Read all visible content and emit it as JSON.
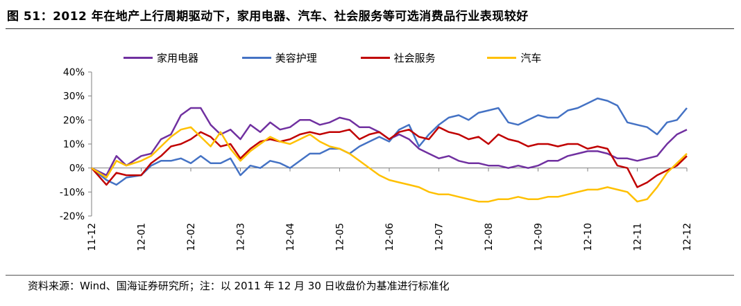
{
  "header": {
    "title": "图 51：2012 年在地产上行周期驱动下，家用电器、汽车、社会服务等可选消费品行业表现较好"
  },
  "footer": {
    "source": "资料来源：Wind、国海证券研究所；注：以 2011 年 12 月 30 日收盘价为基准进行标准化"
  },
  "chart_data": {
    "type": "line",
    "ylim": [
      -20,
      40
    ],
    "yticks": [
      "-20%",
      "-10%",
      "0%",
      "10%",
      "20%",
      "30%",
      "40%"
    ],
    "xticks": [
      "11-12",
      "12-01",
      "12-02",
      "12-03",
      "12-04",
      "12-05",
      "12-06",
      "12-07",
      "12-08",
      "12-09",
      "12-10",
      "12-11",
      "12-12"
    ],
    "grid": false,
    "legend_position": "top",
    "series": [
      {
        "name": "家用电器",
        "color": "#7030a0",
        "x": [
          0,
          0.3,
          0.5,
          0.7,
          1,
          1.2,
          1.4,
          1.6,
          1.8,
          2,
          2.2,
          2.4,
          2.6,
          2.8,
          3,
          3.2,
          3.4,
          3.6,
          3.8,
          4,
          4.2,
          4.4,
          4.6,
          4.8,
          5,
          5.2,
          5.4,
          5.6,
          5.8,
          6,
          6.2,
          6.4,
          6.6,
          6.8,
          7,
          7.2,
          7.4,
          7.6,
          7.8,
          8,
          8.2,
          8.4,
          8.6,
          8.8,
          9,
          9.2,
          9.4,
          9.6,
          9.8,
          10,
          10.2,
          10.4,
          10.6,
          10.8,
          11,
          11.2,
          11.4,
          11.6,
          11.8,
          12
        ],
        "y": [
          0,
          -3,
          5,
          1,
          5,
          6,
          12,
          14,
          22,
          25,
          25,
          18,
          14,
          16,
          12,
          18,
          15,
          19,
          16,
          17,
          20,
          20,
          18,
          19,
          21,
          20,
          17,
          17,
          15,
          12,
          14,
          12,
          8,
          6,
          4,
          5,
          3,
          2,
          2,
          1,
          1,
          0,
          1,
          0,
          1,
          3,
          3,
          5,
          6,
          7,
          7,
          6,
          4,
          4,
          3,
          4,
          5,
          10,
          14,
          16
        ]
      },
      {
        "name": "美容护理",
        "color": "#4472c4",
        "x": [
          0,
          0.3,
          0.5,
          0.7,
          1,
          1.2,
          1.4,
          1.6,
          1.8,
          2,
          2.2,
          2.4,
          2.6,
          2.8,
          3,
          3.2,
          3.4,
          3.6,
          3.8,
          4,
          4.2,
          4.4,
          4.6,
          4.8,
          5,
          5.2,
          5.4,
          5.6,
          5.8,
          6,
          6.2,
          6.4,
          6.6,
          6.8,
          7,
          7.2,
          7.4,
          7.6,
          7.8,
          8,
          8.2,
          8.4,
          8.6,
          8.8,
          9,
          9.2,
          9.4,
          9.6,
          9.8,
          10,
          10.2,
          10.4,
          10.6,
          10.8,
          11,
          11.2,
          11.4,
          11.6,
          11.8,
          12
        ],
        "y": [
          0,
          -5,
          -7,
          -4,
          -3,
          1,
          3,
          3,
          4,
          2,
          5,
          2,
          2,
          4,
          -3,
          1,
          0,
          3,
          2,
          0,
          3,
          6,
          6,
          8,
          8,
          6,
          9,
          11,
          13,
          11,
          16,
          18,
          9,
          14,
          18,
          21,
          22,
          20,
          23,
          24,
          25,
          19,
          18,
          20,
          22,
          21,
          21,
          24,
          25,
          27,
          29,
          28,
          26,
          19,
          18,
          17,
          14,
          19,
          20,
          25
        ]
      },
      {
        "name": "社会服务",
        "color": "#c00000",
        "x": [
          0,
          0.3,
          0.5,
          0.7,
          1,
          1.2,
          1.4,
          1.6,
          1.8,
          2,
          2.2,
          2.4,
          2.6,
          2.8,
          3,
          3.2,
          3.4,
          3.6,
          3.8,
          4,
          4.2,
          4.4,
          4.6,
          4.8,
          5,
          5.2,
          5.4,
          5.6,
          5.8,
          6,
          6.2,
          6.4,
          6.6,
          6.8,
          7,
          7.2,
          7.4,
          7.6,
          7.8,
          8,
          8.2,
          8.4,
          8.6,
          8.8,
          9,
          9.2,
          9.4,
          9.6,
          9.8,
          10,
          10.2,
          10.4,
          10.6,
          10.8,
          11,
          11.2,
          11.4,
          11.6,
          11.8,
          12
        ],
        "y": [
          0,
          -7,
          -2,
          -3,
          -3,
          2,
          5,
          9,
          10,
          12,
          15,
          13,
          9,
          10,
          4,
          8,
          11,
          12,
          11,
          12,
          14,
          15,
          14,
          15,
          15,
          16,
          12,
          14,
          15,
          12,
          15,
          16,
          13,
          12,
          17,
          15,
          14,
          12,
          13,
          10,
          14,
          12,
          11,
          9,
          10,
          10,
          9,
          10,
          10,
          8,
          9,
          8,
          1,
          0,
          -8,
          -6,
          -3,
          -1,
          1,
          5
        ]
      },
      {
        "name": "汽车",
        "color": "#ffc000",
        "x": [
          0,
          0.3,
          0.5,
          0.7,
          1,
          1.2,
          1.4,
          1.6,
          1.8,
          2,
          2.2,
          2.4,
          2.6,
          2.8,
          3,
          3.2,
          3.4,
          3.6,
          3.8,
          4,
          4.2,
          4.4,
          4.6,
          4.8,
          5,
          5.2,
          5.4,
          5.6,
          5.8,
          6,
          6.2,
          6.4,
          6.6,
          6.8,
          7,
          7.2,
          7.4,
          7.6,
          7.8,
          8,
          8.2,
          8.4,
          8.6,
          8.8,
          9,
          9.2,
          9.4,
          9.6,
          9.8,
          10,
          10.2,
          10.4,
          10.6,
          10.8,
          11,
          11.2,
          11.4,
          11.6,
          11.8,
          12
        ],
        "y": [
          0,
          -4,
          3,
          1,
          3,
          5,
          9,
          13,
          16,
          17,
          13,
          9,
          15,
          8,
          3,
          7,
          10,
          13,
          11,
          10,
          12,
          14,
          11,
          9,
          8,
          6,
          3,
          0,
          -3,
          -5,
          -6,
          -7,
          -8,
          -10,
          -11,
          -11,
          -12,
          -13,
          -14,
          -14,
          -13,
          -13,
          -12,
          -13,
          -13,
          -12,
          -12,
          -11,
          -10,
          -9,
          -9,
          -8,
          -9,
          -10,
          -14,
          -13,
          -8,
          -2,
          2,
          6
        ]
      }
    ]
  }
}
